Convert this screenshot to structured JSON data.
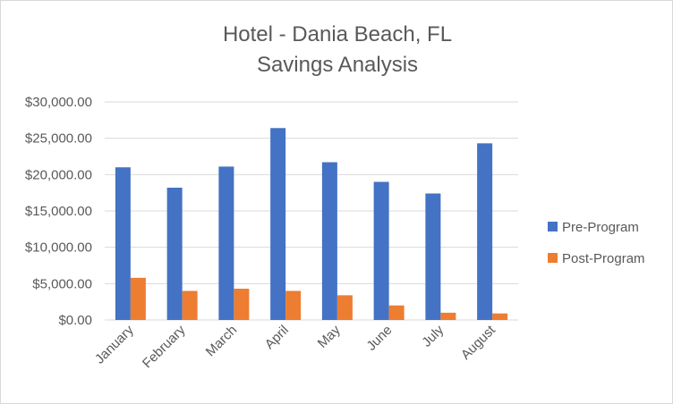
{
  "chart_data": {
    "type": "bar",
    "title": "Hotel - Dania Beach, FL",
    "subtitle": "Savings Analysis",
    "categories": [
      "January",
      "February",
      "March",
      "April",
      "May",
      "June",
      "July",
      "August"
    ],
    "series": [
      {
        "name": "Pre-Program",
        "color": "#4472C4",
        "values": [
          21000,
          18200,
          21100,
          26400,
          21700,
          19000,
          17400,
          24300
        ]
      },
      {
        "name": "Post-Program",
        "color": "#ED7D31",
        "values": [
          5800,
          4000,
          4300,
          4000,
          3400,
          2000,
          1000,
          900
        ]
      }
    ],
    "ylim": [
      0,
      30000
    ],
    "yticks": [
      0,
      5000,
      10000,
      15000,
      20000,
      25000,
      30000
    ],
    "ytick_labels": [
      "$0.00",
      "$5,000.00",
      "$10,000.00",
      "$15,000.00",
      "$20,000.00",
      "$25,000.00",
      "$30,000.00"
    ],
    "grid": true,
    "legend_position": "right",
    "gridline_color": "#d9d9d9"
  }
}
